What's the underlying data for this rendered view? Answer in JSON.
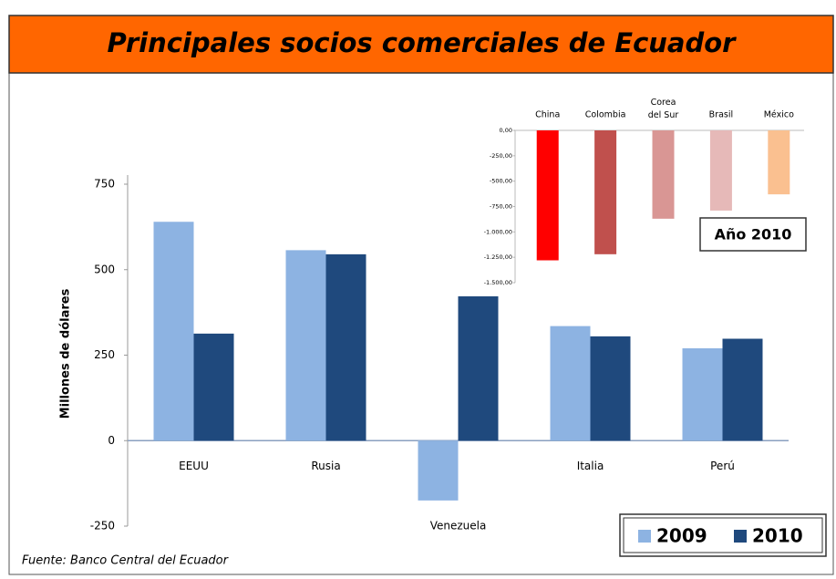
{
  "title": "Principales socios comerciales de Ecuador",
  "source": "Fuente: Banco Central del Ecuador",
  "chart_data": [
    {
      "type": "bar",
      "y_label": "Millones de dólares",
      "categories": [
        "EEUU",
        "Rusia",
        "Venezuela",
        "Italia",
        "Perú"
      ],
      "series": [
        {
          "name": "2009",
          "color": "#8db3e2",
          "values": [
            640,
            557,
            -175,
            335,
            270
          ]
        },
        {
          "name": "2010",
          "color": "#1f497d",
          "values": [
            313,
            545,
            422,
            305,
            298
          ]
        }
      ],
      "ylim": [
        -250,
        750
      ],
      "yticks": [
        -250,
        0,
        250,
        500,
        750
      ],
      "legend": "bottom-right"
    },
    {
      "type": "colored-bar",
      "annotation": "Año 2010",
      "categories": [
        "China",
        "Colombia",
        "Corea del Sur",
        "Brasil",
        "México"
      ],
      "values": [
        -1280,
        -1220,
        -870,
        -790,
        -630
      ],
      "colors": [
        "#ff0000",
        "#c0504d",
        "#d99694",
        "#e6b9b8",
        "#fac090"
      ],
      "ylim": [
        -1500,
        0
      ],
      "yticks": [
        {
          "value": 0,
          "label": "0,00"
        },
        {
          "value": -250,
          "label": "-250,00"
        },
        {
          "value": -500,
          "label": "-500,00"
        },
        {
          "value": -750,
          "label": "-750,00"
        },
        {
          "value": -1000,
          "label": "-1.000,00"
        },
        {
          "value": -1250,
          "label": "-1.250,00"
        },
        {
          "value": -1500,
          "label": "-1.500,00"
        }
      ]
    }
  ]
}
